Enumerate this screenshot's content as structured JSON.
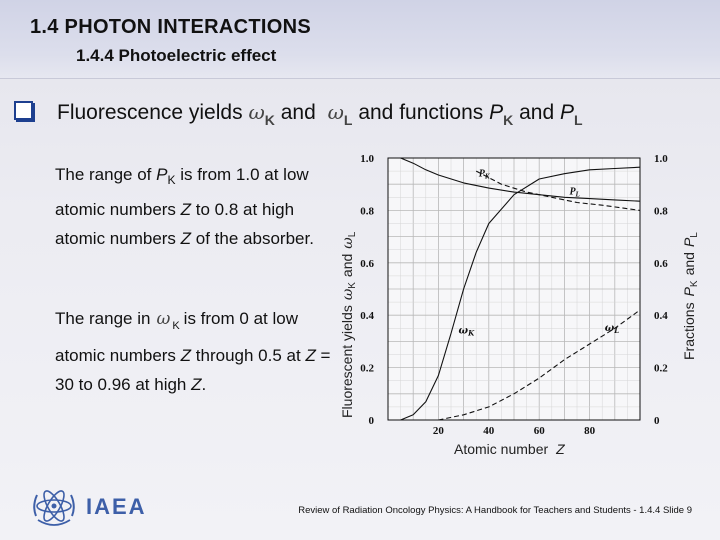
{
  "header": {
    "title": "1.4 PHOTON INTERACTIONS",
    "subtitle": "1.4.4 Photoelectric effect"
  },
  "bullet": {
    "prefix": "Fluorescence yields",
    "omega_symbol": "ω",
    "omega_k_sub": "K",
    "and1": "and",
    "omega_l_sub": "L",
    "suffix": "and functions",
    "pk": "P",
    "pk_sub": "K",
    "and2": "and",
    "pl": "P",
    "pl_sub": "L"
  },
  "paragraph1": {
    "part1": "The range of ",
    "p": "P",
    "p_sub": "K",
    "part2": " is from 1.0 at low atomic numbers ",
    "z1": "Z",
    "part3": " to 0.8 at high atomic numbers ",
    "z2": "Z",
    "part4": " of the absorber."
  },
  "paragraph2": {
    "part1": "The range in",
    "omega": "ω",
    "omega_sub": "K",
    "part2": "is from 0 at low atomic numbers ",
    "z1": "Z",
    "part3": " through 0.5 at ",
    "z2": "Z",
    "part4": " = 30 to 0.96 at high ",
    "z3": "Z",
    "part5": "."
  },
  "chart_data": {
    "type": "line",
    "xlabel": "Atomic number",
    "xlabel_var": "Z",
    "ylabel_left": {
      "prefix": "Fluorescent yields",
      "omega": "ω",
      "k": "K",
      "and": "and",
      "l": "L"
    },
    "ylabel_right": {
      "prefix": "Fractions",
      "p1": "P",
      "k": "K",
      "and": "and",
      "p2": "P",
      "l": "L"
    },
    "xlim": [
      0,
      100
    ],
    "ylim": [
      0,
      1.0
    ],
    "x_ticks": [
      "20",
      "40",
      "60",
      "80"
    ],
    "x_tick_values": [
      20,
      40,
      60,
      80
    ],
    "y_ticks": [
      "0",
      "0.2",
      "0.4",
      "0.6",
      "0.8",
      "1.0"
    ],
    "y_tick_values": [
      0,
      0.2,
      0.4,
      0.6,
      0.8,
      1.0
    ],
    "grid": true,
    "series": [
      {
        "name": "P_K",
        "label": "P",
        "label_sub": "K",
        "style": "solid",
        "x": [
          5,
          10,
          15,
          20,
          30,
          40,
          50,
          60,
          70,
          80,
          90,
          100
        ],
        "y": [
          1.0,
          0.98,
          0.955,
          0.935,
          0.905,
          0.885,
          0.87,
          0.86,
          0.85,
          0.845,
          0.84,
          0.835
        ]
      },
      {
        "name": "P_L",
        "label": "P",
        "label_sub": "L",
        "style": "dashed",
        "x": [
          35,
          45,
          55,
          65,
          75,
          85,
          100
        ],
        "y": [
          0.95,
          0.9,
          0.87,
          0.85,
          0.83,
          0.82,
          0.8
        ]
      },
      {
        "name": "ω_K",
        "label": "ω",
        "label_sub": "K",
        "style": "solid",
        "x": [
          5,
          10,
          15,
          20,
          25,
          30,
          35,
          40,
          50,
          60,
          70,
          80,
          90,
          100
        ],
        "y": [
          0.0,
          0.02,
          0.07,
          0.17,
          0.33,
          0.5,
          0.64,
          0.75,
          0.86,
          0.92,
          0.94,
          0.955,
          0.96,
          0.965
        ]
      },
      {
        "name": "ω_L",
        "label": "ω",
        "label_sub": "L",
        "style": "dashed",
        "x": [
          20,
          30,
          40,
          50,
          60,
          70,
          80,
          90,
          100
        ],
        "y": [
          0.0,
          0.02,
          0.05,
          0.1,
          0.16,
          0.23,
          0.29,
          0.35,
          0.42
        ]
      }
    ]
  },
  "footer": {
    "logo_text": "IAEA",
    "citation": "Review of Radiation Oncology Physics: A Handbook for Teachers and Students - 1.4.4 Slide 9"
  }
}
